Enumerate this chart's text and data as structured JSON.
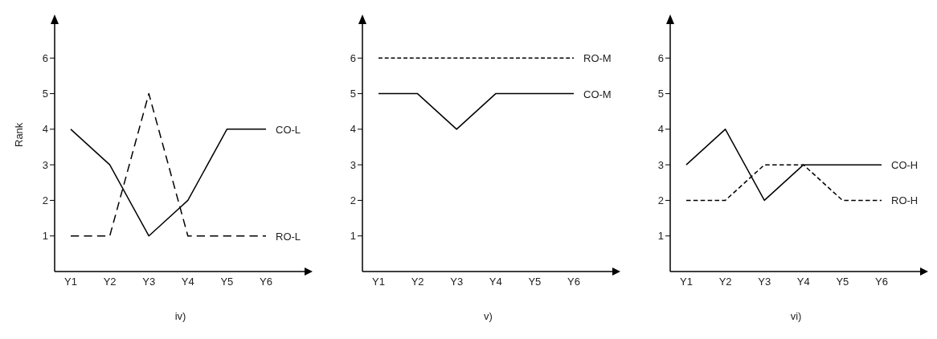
{
  "chart_data": [
    {
      "type": "line",
      "xlabel": "iv)",
      "ylabel": "Rank",
      "categories": [
        "Y1",
        "Y2",
        "Y3",
        "Y4",
        "Y5",
        "Y6"
      ],
      "ylim": [
        0,
        7
      ],
      "yticks": [
        1,
        2,
        3,
        4,
        5,
        6
      ],
      "grid": false,
      "legend": false,
      "marker": "none",
      "series": [
        {
          "name": "CO-L",
          "color": "#000000",
          "line_style": "solid",
          "values": [
            4,
            3,
            1,
            2,
            4,
            4
          ]
        },
        {
          "name": "RO-L",
          "color": "#000000",
          "line_style": "dashed",
          "values": [
            1,
            1,
            5,
            1,
            1,
            1
          ]
        }
      ]
    },
    {
      "type": "line",
      "xlabel": "v)",
      "categories": [
        "Y1",
        "Y2",
        "Y3",
        "Y4",
        "Y5",
        "Y6"
      ],
      "ylim": [
        0,
        7
      ],
      "yticks": [
        1,
        2,
        3,
        4,
        5,
        6
      ],
      "grid": false,
      "legend": false,
      "marker": "none",
      "series": [
        {
          "name": "RO-M",
          "color": "#000000",
          "line_style": "dashed",
          "values": [
            6,
            6,
            6,
            6,
            6,
            6
          ]
        },
        {
          "name": "CO-M",
          "color": "#000000",
          "line_style": "solid",
          "values": [
            5,
            5,
            4,
            5,
            5,
            5
          ]
        }
      ]
    },
    {
      "type": "line",
      "xlabel": "vi)",
      "categories": [
        "Y1",
        "Y2",
        "Y3",
        "Y4",
        "Y5",
        "Y6"
      ],
      "ylim": [
        0,
        7
      ],
      "yticks": [
        1,
        2,
        3,
        4,
        5,
        6
      ],
      "grid": false,
      "legend": false,
      "marker": "none",
      "series": [
        {
          "name": "CO-H",
          "color": "#000000",
          "line_style": "solid",
          "values": [
            3,
            4,
            2,
            3,
            3,
            3
          ]
        },
        {
          "name": "RO-H",
          "color": "#000000",
          "line_style": "dashed",
          "values": [
            2,
            2,
            3,
            3,
            2,
            2
          ]
        }
      ]
    }
  ]
}
